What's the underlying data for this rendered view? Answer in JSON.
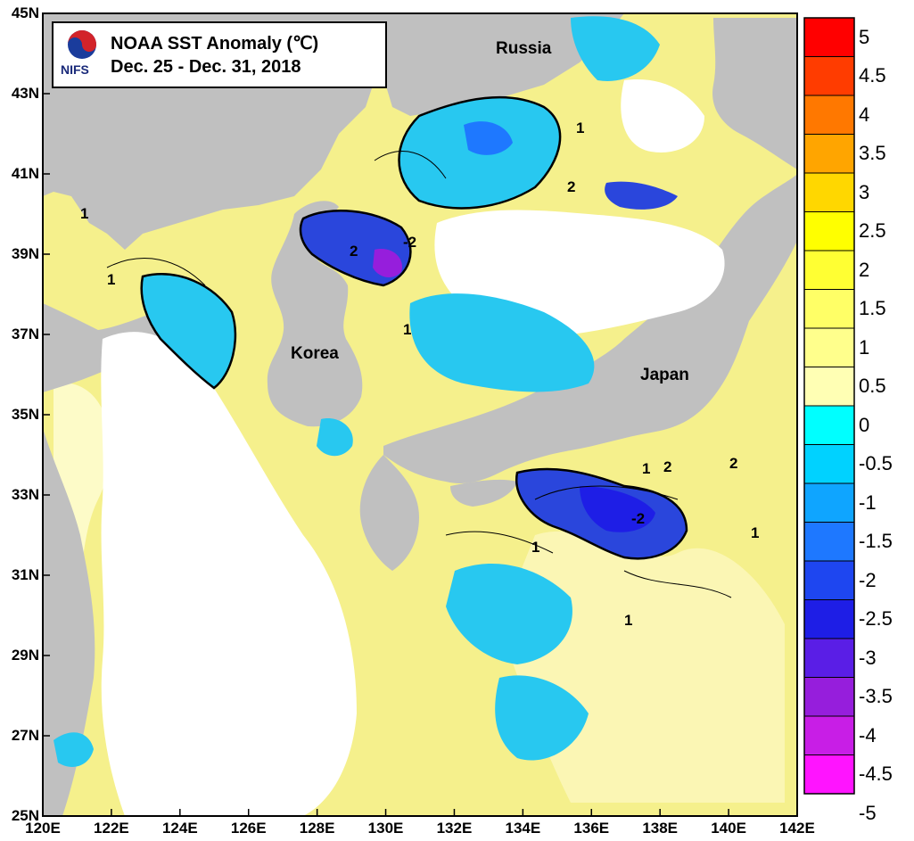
{
  "title": {
    "line1": "NOAA SST Anomaly (℃)",
    "line2": "Dec. 25 - Dec. 31, 2018",
    "logo_text": "NIFS",
    "logo_icon": "taegeuk-logo-icon"
  },
  "axes": {
    "lat_labels": [
      "45N",
      "43N",
      "41N",
      "39N",
      "37N",
      "35N",
      "33N",
      "31N",
      "29N",
      "27N",
      "25N"
    ],
    "lon_labels": [
      "120E",
      "122E",
      "124E",
      "126E",
      "128E",
      "130E",
      "132E",
      "134E",
      "136E",
      "138E",
      "140E",
      "142E"
    ]
  },
  "places": {
    "russia": "Russia",
    "korea": "Korea",
    "japan": "Japan"
  },
  "contour_labels": [
    "1",
    "2",
    "-2",
    "1",
    "2",
    "1",
    "2",
    "1",
    "-2",
    "1",
    "2",
    "1",
    "1",
    "1"
  ],
  "legend": {
    "labels": [
      "5",
      "4.5",
      "4",
      "3.5",
      "3",
      "2.5",
      "2",
      "1.5",
      "1",
      "0.5",
      "0",
      "-0.5",
      "-1",
      "-1.5",
      "-2",
      "-2.5",
      "-3",
      "-3.5",
      "-4",
      "-4.5",
      "-5"
    ],
    "colors": [
      "#ff0000",
      "#ff3c00",
      "#ff7800",
      "#ffa500",
      "#ffd700",
      "#ffff00",
      "#ffff33",
      "#ffff66",
      "#ffff8c",
      "#ffffb4",
      "#ffffdc",
      "#00ffff",
      "#00d2ff",
      "#0fa5ff",
      "#1e78ff",
      "#1e46f0",
      "#1e1ee6",
      "#5a1ee6",
      "#961edc",
      "#c81ee6",
      "#ff14ff"
    ]
  },
  "colors": {
    "land": "#c0c0c0",
    "positive_fill": "#f5f08c",
    "light_fill": "#fdfbc8",
    "negative_fill": "#28c8f0",
    "deep_negative": "#2a46dc",
    "no_data": "#ffffff"
  }
}
